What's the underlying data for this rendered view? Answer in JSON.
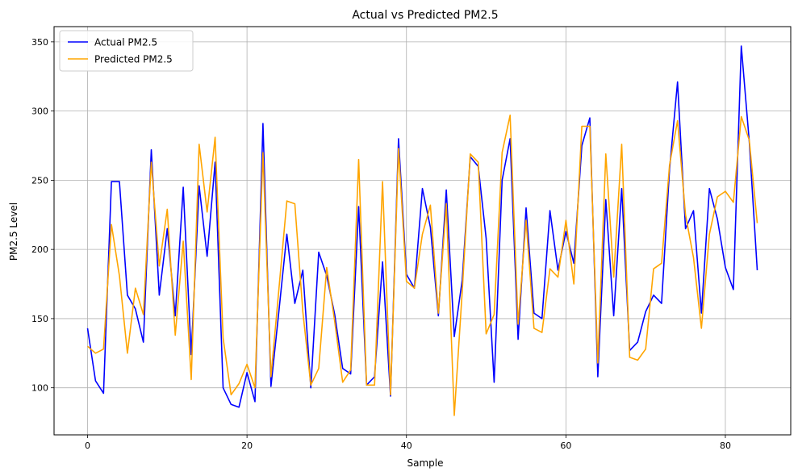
{
  "chart_data": {
    "type": "line",
    "title": "Actual vs Predicted PM2.5",
    "xlabel": "Sample",
    "ylabel": "PM2.5 Level",
    "xlim": [
      -4.2,
      88.2
    ],
    "ylim": [
      66,
      361
    ],
    "xticks": [
      0,
      20,
      40,
      60,
      80
    ],
    "yticks": [
      100,
      150,
      200,
      250,
      300,
      350
    ],
    "grid": true,
    "legend_position": "upper-left",
    "x": [
      0,
      1,
      2,
      3,
      4,
      5,
      6,
      7,
      8,
      9,
      10,
      11,
      12,
      13,
      14,
      15,
      16,
      17,
      18,
      19,
      20,
      21,
      22,
      23,
      24,
      25,
      26,
      27,
      28,
      29,
      30,
      31,
      32,
      33,
      34,
      35,
      36,
      37,
      38,
      39,
      40,
      41,
      42,
      43,
      44,
      45,
      46,
      47,
      48,
      49,
      50,
      51,
      52,
      53,
      54,
      55,
      56,
      57,
      58,
      59,
      60,
      61,
      62,
      63,
      64,
      65,
      66,
      67,
      68,
      69,
      70,
      71,
      72,
      73,
      74,
      75,
      76,
      77,
      78,
      79,
      80,
      81,
      82,
      83,
      84
    ],
    "series": [
      {
        "name": "Actual PM2.5",
        "color": "#0000ff",
        "values": [
          143,
          105,
          96,
          249,
          249,
          167,
          157,
          133,
          272,
          167,
          215,
          152,
          245,
          124,
          246,
          195,
          263,
          100,
          88,
          86,
          111,
          90,
          291,
          101,
          155,
          211,
          161,
          185,
          100,
          198,
          181,
          153,
          114,
          110,
          231,
          102,
          108,
          191,
          94,
          280,
          182,
          172,
          244,
          216,
          152,
          243,
          137,
          178,
          267,
          260,
          208,
          104,
          250,
          280,
          135,
          230,
          154,
          150,
          228,
          185,
          213,
          190,
          275,
          295,
          108,
          236,
          152,
          244,
          127,
          133,
          155,
          167,
          161,
          258,
          321,
          215,
          228,
          154,
          244,
          222,
          187,
          171,
          347,
          278,
          185
        ]
      },
      {
        "name": "Predicted PM2.5",
        "color": "#ffa500",
        "values": [
          130,
          125,
          128,
          218,
          181,
          125,
          172,
          153,
          263,
          188,
          229,
          138,
          206,
          106,
          276,
          227,
          281,
          136,
          95,
          103,
          117,
          100,
          270,
          108,
          171,
          235,
          233,
          155,
          102,
          114,
          187,
          148,
          104,
          113,
          265,
          102,
          102,
          249,
          95,
          273,
          177,
          172,
          211,
          232,
          154,
          233,
          80,
          170,
          269,
          263,
          139,
          153,
          270,
          297,
          146,
          221,
          143,
          140,
          186,
          180,
          221,
          175,
          289,
          289,
          118,
          269,
          180,
          276,
          122,
          120,
          128,
          186,
          190,
          261,
          293,
          225,
          194,
          143,
          211,
          238,
          242,
          234,
          296,
          279,
          219
        ]
      }
    ]
  }
}
